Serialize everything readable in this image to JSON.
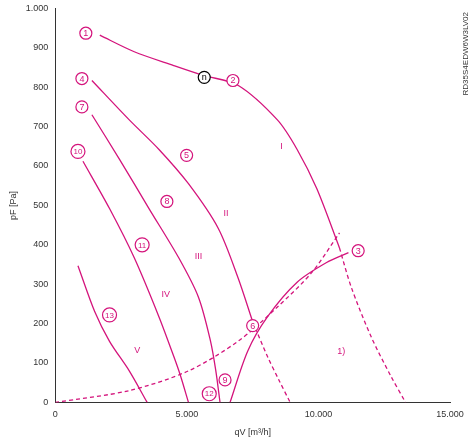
{
  "chart_data": {
    "type": "line",
    "subtitle": "RD35S4EDW6W3LV02",
    "x_label": "qV [m³/h]",
    "y_label": "pF [Pa]",
    "xlim": [
      0,
      15000
    ],
    "xticks": [
      0,
      {
        "value": 5000,
        "label": "5.000"
      },
      {
        "value": 10000,
        "label": "10.000"
      },
      {
        "value": 15000,
        "label": "15.000"
      }
    ],
    "ylim": [
      0,
      1000
    ],
    "yticks": [
      0,
      100,
      200,
      300,
      400,
      500,
      600,
      700,
      800,
      900,
      {
        "value": 1000,
        "label": "1.000"
      }
    ],
    "grid": false,
    "color": "#d4147c",
    "series": [
      {
        "x": [
          1690,
          3000,
          4500,
          5625,
          6940,
          8440,
          9190,
          9940,
          10800
        ],
        "values": [
          932,
          890,
          855,
          830,
          805,
          717,
          642,
          542,
          392
        ],
        "line_style": "solid"
      },
      {
        "x": [
          10800,
          11250,
          12000,
          12750,
          13310
        ],
        "values": [
          392,
          292,
          167,
          67,
          0
        ],
        "line_style": "dashed"
      },
      {
        "x": [
          1390,
          2810,
          3940,
          5060,
          6190,
          6940,
          7500
        ],
        "values": [
          817,
          717,
          642,
          555,
          442,
          317,
          205
        ],
        "line_style": "solid"
      },
      {
        "x": [
          7500,
          8060,
          8510,
          8925
        ],
        "values": [
          205,
          117,
          55,
          0
        ],
        "line_style": "dashed"
      },
      {
        "x": [
          1390,
          2440,
          3560,
          4690,
          5440,
          5900,
          6100,
          6260
        ],
        "values": [
          730,
          617,
          492,
          367,
          267,
          155,
          80,
          0
        ],
        "line_style": "solid"
      },
      {
        "x": [
          1050,
          2060,
          3000,
          3940,
          4500,
          4760,
          5060
        ],
        "values": [
          612,
          492,
          367,
          217,
          117,
          67,
          0
        ],
        "line_style": "solid"
      },
      {
        "x": [
          860,
          1500,
          2060,
          2810,
          3490
        ],
        "values": [
          347,
          230,
          155,
          80,
          0
        ],
        "line_style": "solid"
      },
      {
        "x": [
          6640,
          7310,
          8060,
          9190,
          10310,
          11140
        ],
        "values": [
          0,
          130,
          217,
          305,
          355,
          380
        ],
        "line_style": "solid"
      },
      {
        "x": [
          0,
          2810,
          5060,
          6940,
          8440,
          9750,
          10800
        ],
        "values": [
          0,
          30,
          80,
          155,
          242,
          330,
          430
        ],
        "line_style": "dashed"
      }
    ],
    "annotations": [
      {
        "text": "1",
        "x": 1160,
        "y": 937,
        "marker": "circle"
      },
      {
        "text": "2",
        "x": 6750,
        "y": 817,
        "marker": "circle"
      },
      {
        "text": "3",
        "x": 11510,
        "y": 385,
        "marker": "circle"
      },
      {
        "text": "4",
        "x": 1010,
        "y": 822,
        "marker": "circle"
      },
      {
        "text": "5",
        "x": 4990,
        "y": 627,
        "marker": "circle"
      },
      {
        "text": "6",
        "x": 7500,
        "y": 195,
        "marker": "circle"
      },
      {
        "text": "7",
        "x": 1010,
        "y": 750,
        "marker": "circle"
      },
      {
        "text": "8",
        "x": 4240,
        "y": 510,
        "marker": "circle"
      },
      {
        "text": "9",
        "x": 6450,
        "y": 57,
        "marker": "circle"
      },
      {
        "text": "10",
        "x": 860,
        "y": 637,
        "marker": "circle"
      },
      {
        "text": "11",
        "x": 3300,
        "y": 400,
        "marker": "circle"
      },
      {
        "text": "12",
        "x": 5850,
        "y": 22,
        "marker": "circle"
      },
      {
        "text": "13",
        "x": 2060,
        "y": 222,
        "marker": "circle"
      },
      {
        "text": "n",
        "x": 5660,
        "y": 825,
        "marker": "circle",
        "color": "#000000"
      },
      {
        "text": "I",
        "x": 8600,
        "y": 650
      },
      {
        "text": "II",
        "x": 6490,
        "y": 480
      },
      {
        "text": "III",
        "x": 5440,
        "y": 372
      },
      {
        "text": "IV",
        "x": 4200,
        "y": 275
      },
      {
        "text": "V",
        "x": 3110,
        "y": 132
      },
      {
        "text": "1)",
        "x": 10870,
        "y": 130
      }
    ]
  }
}
